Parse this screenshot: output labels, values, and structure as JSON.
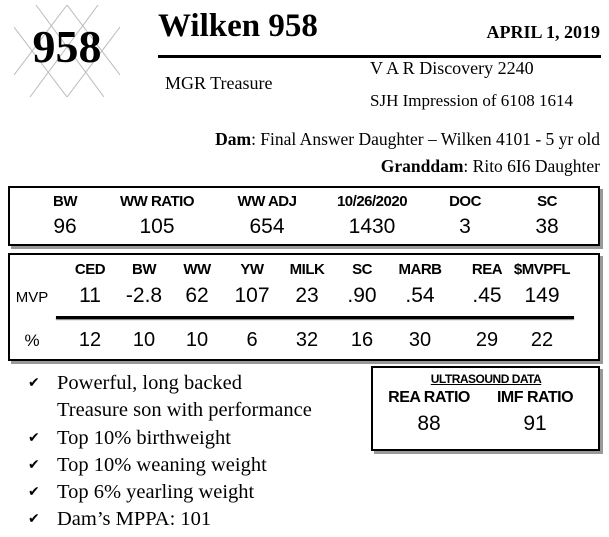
{
  "header": {
    "lot_number": "958",
    "title": "Wilken 958",
    "date": "APRIL  1, 2019"
  },
  "pedigree": {
    "sire": "MGR Treasure",
    "grandsire_line1": "V A R Discovery 2240",
    "grandsire_line2": "SJH Impression of 6108 1614",
    "dam_label": "Dam",
    "dam_value": ": Final Answer Daughter – Wilken 4101 - 5 yr old",
    "granddam_label": "Granddam",
    "granddam_value": ": Rito 6I6 Daughter"
  },
  "performance": {
    "headers": [
      "BW",
      "WW RATIO",
      "WW ADJ",
      "10/26/2020",
      "DOC",
      "SC"
    ],
    "values": [
      "96",
      "105",
      "654",
      "1430",
      "3",
      "38"
    ]
  },
  "epds": {
    "headers": [
      "CED",
      "BW",
      "WW",
      "YW",
      "MILK",
      "SC",
      "MARB",
      "REA",
      "$MVPFL"
    ],
    "mvp_label": "MVP",
    "mvp": [
      "11",
      "-2.8",
      "62",
      "107",
      "23",
      ".90",
      ".54",
      ".45",
      "149"
    ],
    "pct_label": "%",
    "pct": [
      "12",
      "10",
      "10",
      "6",
      "32",
      "16",
      "30",
      "29",
      "22"
    ]
  },
  "ultrasound": {
    "title": "ULTRASOUND DATA",
    "headers": [
      "REA RATIO",
      "IMF RATIO"
    ],
    "values": [
      "88",
      "91"
    ]
  },
  "bullets": [
    "Powerful, long backed",
    "Treasure son with performance",
    "Top 10% birthweight",
    "Top 10% weaning weight",
    "Top 6% yearling weight",
    "Dam’s MPPA: 101"
  ],
  "icons": {
    "bullet": "checkmark-icon",
    "logo": "diamond-lattice-logo"
  }
}
